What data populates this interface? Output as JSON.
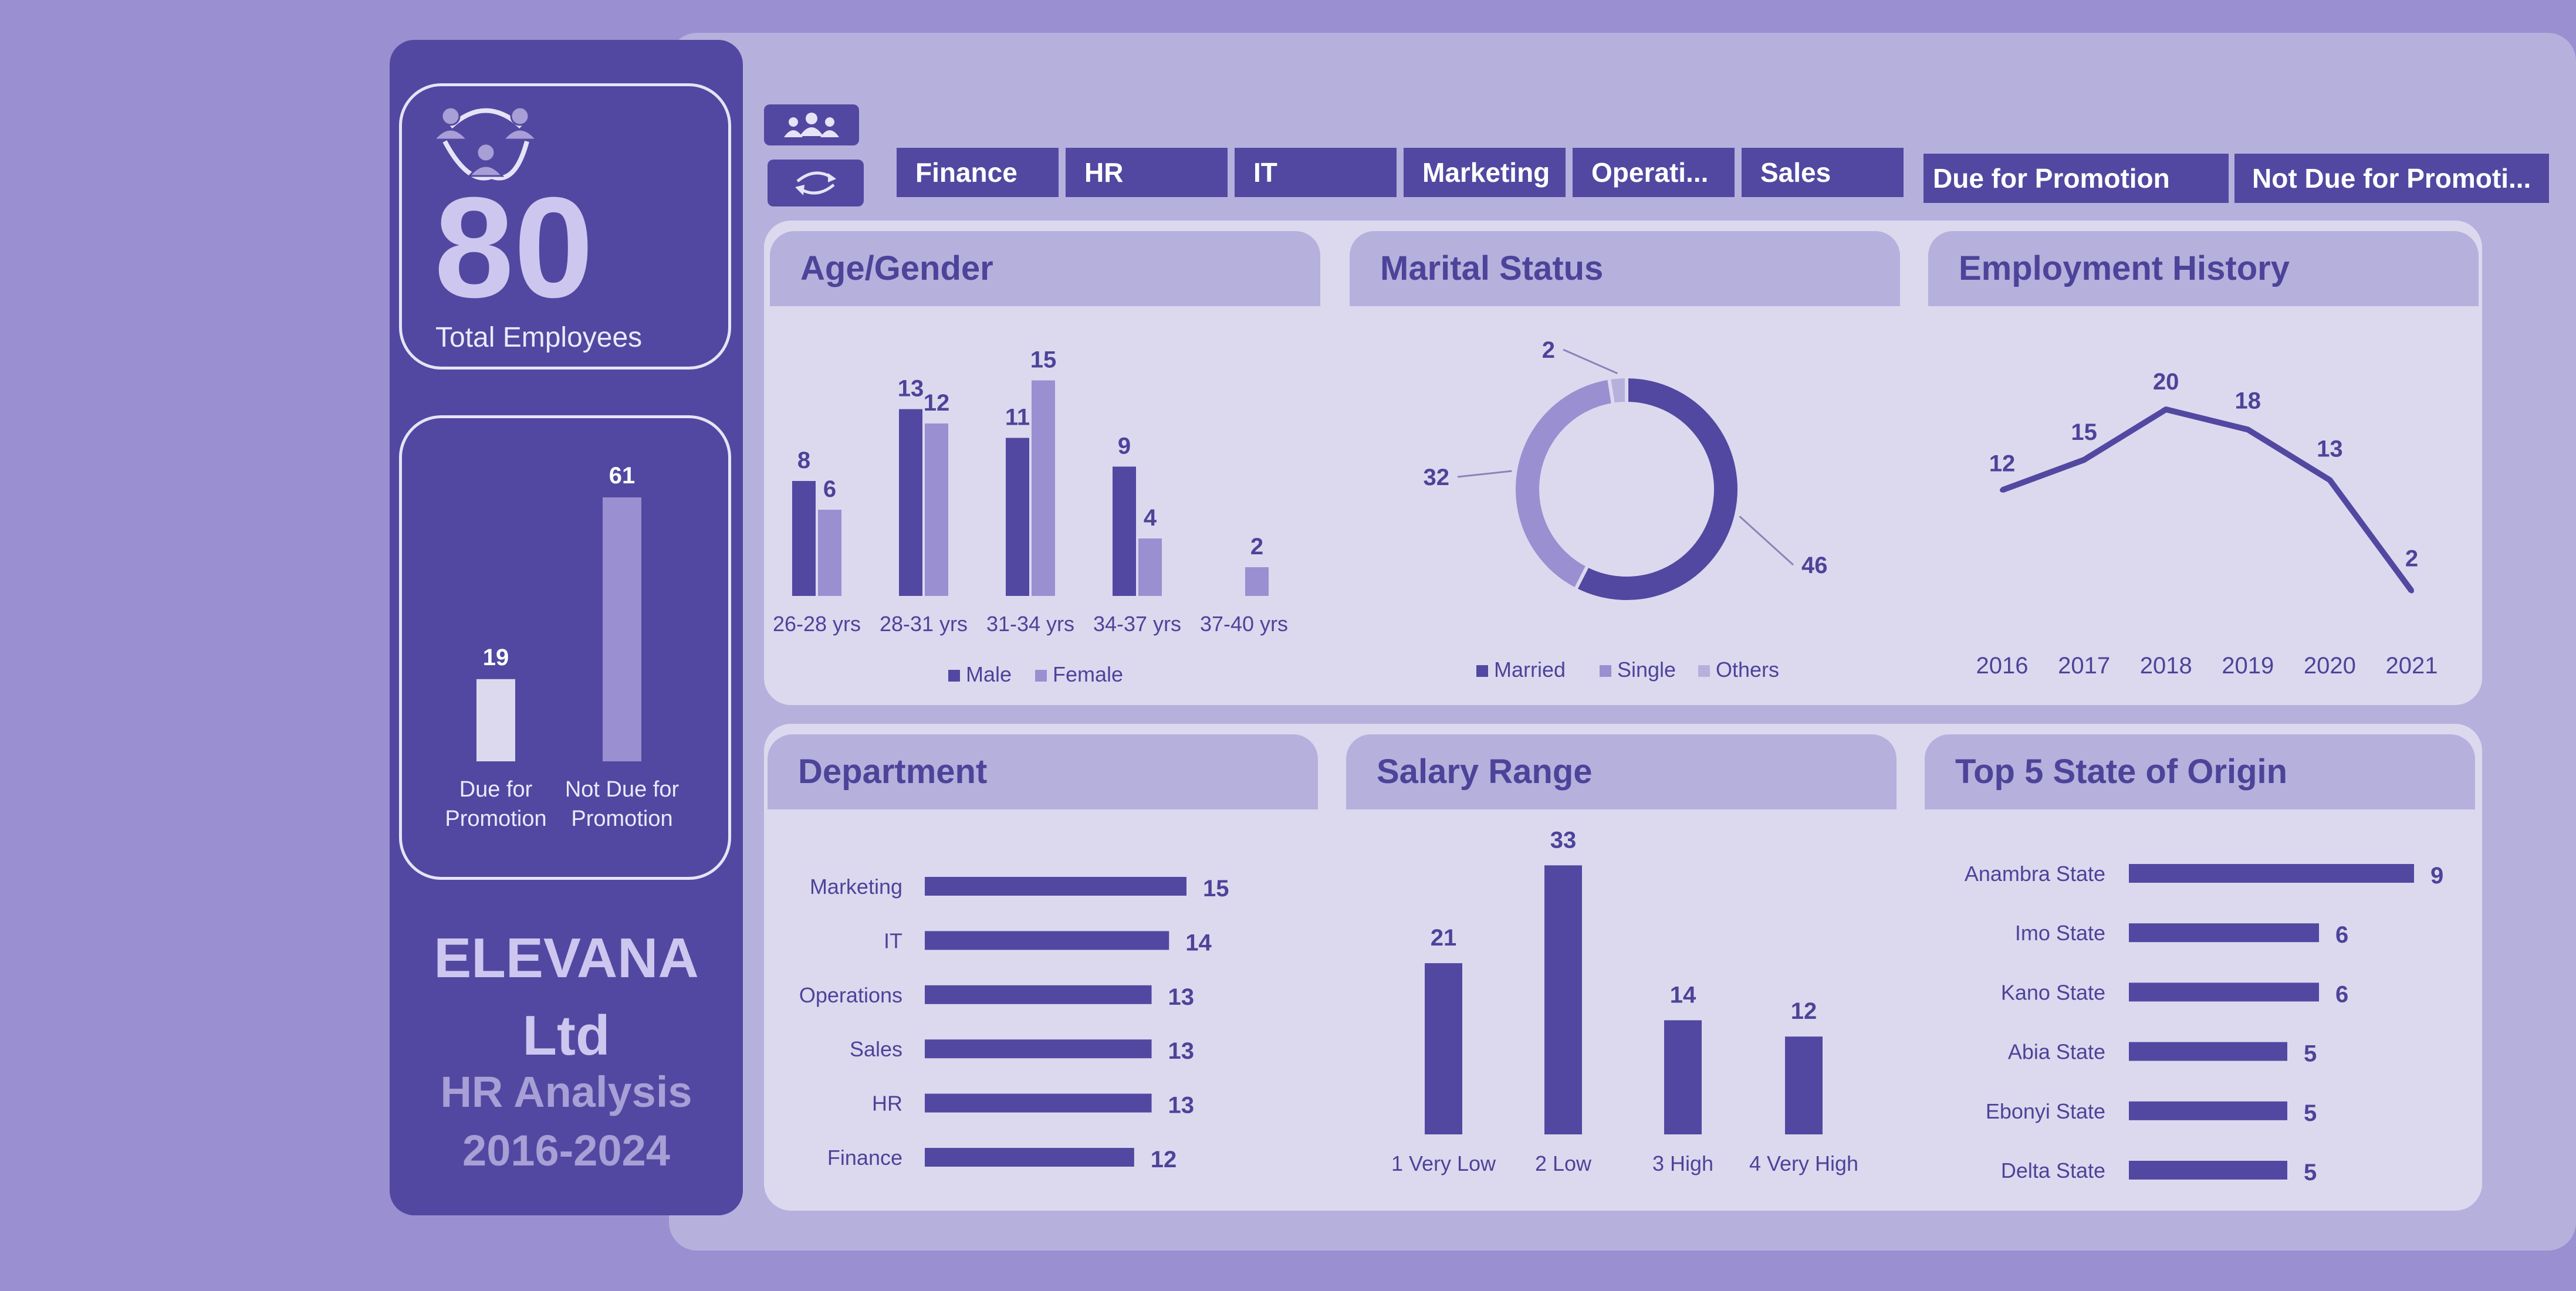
{
  "colors": {
    "page_bg": "#9a8fd0",
    "main_bg": "#b6b0dd",
    "sidebar_bg": "#5248a1",
    "panel_bg": "#dcd9ef",
    "dark_series": "#5248a1",
    "light_series": "#9a8fd0",
    "lighter_series": "#b6b0dd",
    "text_dark": "#4d4399"
  },
  "sidebar": {
    "total_employees": "80",
    "total_label": "Total Employees",
    "company_line1": "ELEVANA",
    "company_line2": "Ltd",
    "subtitle_line1": "HR Analysis",
    "subtitle_line2": "2016-2024",
    "icons": [
      "people-network-icon"
    ]
  },
  "toolbar": {
    "icons": [
      "people-group-icon",
      "refresh-icon"
    ]
  },
  "slicers": {
    "departments": [
      "Finance",
      "HR",
      "IT",
      "Marketing",
      "Operati...",
      "Sales"
    ],
    "promotion": [
      "Due for Promotion",
      "Not Due for Promoti..."
    ]
  },
  "panels": {
    "age_gender": "Age/Gender",
    "marital": "Marital Status",
    "history": "Employment History",
    "department": "Department",
    "salary": "Salary Range",
    "states": "Top 5 State of Origin"
  },
  "chart_data": [
    {
      "id": "promotion",
      "type": "bar",
      "categories": [
        "Due for Promotion",
        "Not Due for Promotion"
      ],
      "category_lines": [
        [
          "Due for",
          "Promotion"
        ],
        [
          "Not Due for",
          "Promotion"
        ]
      ],
      "values": [
        19,
        61
      ],
      "colors": [
        "#dcd9ef",
        "#9a8fd0"
      ]
    },
    {
      "id": "age_gender",
      "type": "bar",
      "title": "Age/Gender",
      "categories": [
        "26-28 yrs",
        "28-31 yrs",
        "31-34 yrs",
        "34-37 yrs",
        "37-40 yrs"
      ],
      "series": [
        {
          "name": "Male",
          "values": [
            8,
            13,
            11,
            9,
            null
          ],
          "color": "#5248a1"
        },
        {
          "name": "Female",
          "values": [
            6,
            12,
            15,
            4,
            2
          ],
          "color": "#9a8fd0"
        }
      ],
      "ylim": [
        0,
        16
      ],
      "legend": "bottom"
    },
    {
      "id": "marital",
      "type": "pie",
      "title": "Marital Status",
      "categories": [
        "Married",
        "Single",
        "Others"
      ],
      "values": [
        46,
        32,
        2
      ],
      "colors": [
        "#5248a1",
        "#9a8fd0",
        "#b6b0dd"
      ],
      "donut": true,
      "legend": "bottom"
    },
    {
      "id": "history",
      "type": "line",
      "title": "Employment History",
      "x": [
        "2016",
        "2017",
        "2018",
        "2019",
        "2020",
        "2021"
      ],
      "values": [
        12,
        15,
        20,
        18,
        13,
        2
      ],
      "ylim": [
        0,
        22
      ],
      "color": "#5248a1"
    },
    {
      "id": "department",
      "type": "bar",
      "orientation": "horizontal",
      "title": "Department",
      "categories": [
        "Marketing",
        "IT",
        "Operations",
        "Sales",
        "HR",
        "Finance"
      ],
      "values": [
        15,
        14,
        13,
        13,
        13,
        12
      ],
      "xlim": [
        0,
        15
      ]
    },
    {
      "id": "salary",
      "type": "bar",
      "title": "Salary Range",
      "categories": [
        "1 Very Low",
        "2 Low",
        "3 High",
        "4 Very High"
      ],
      "values": [
        21,
        33,
        14,
        12
      ],
      "ylim": [
        0,
        33
      ]
    },
    {
      "id": "states",
      "type": "bar",
      "orientation": "horizontal",
      "title": "Top 5 State of Origin",
      "categories": [
        "Anambra State",
        "Imo State",
        "Kano State",
        "Abia State",
        "Ebonyi State",
        "Delta State"
      ],
      "values": [
        9,
        6,
        6,
        5,
        5,
        5
      ],
      "xlim": [
        0,
        9
      ]
    }
  ]
}
